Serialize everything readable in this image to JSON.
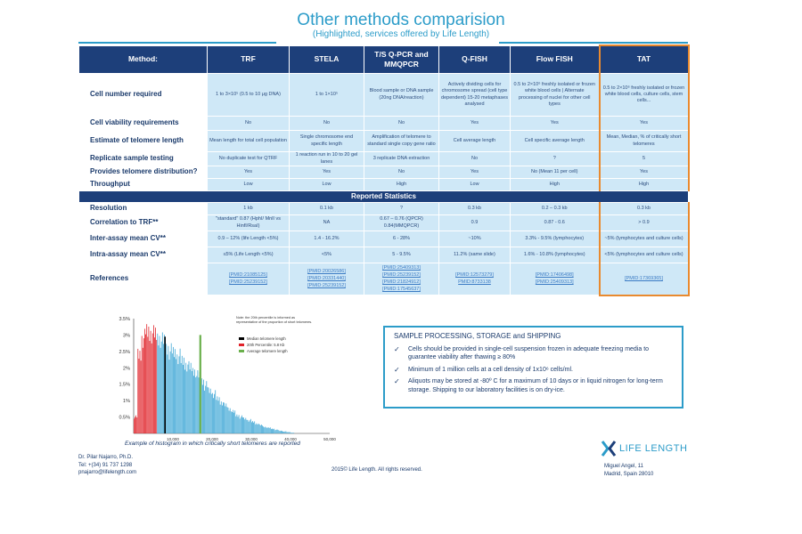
{
  "title": "Other methods comparision",
  "subtitle": "(Highlighted, services offered by Life Length)",
  "table": {
    "header": [
      "Method:",
      "TRF",
      "STELA",
      "T/S Q-PCR and MMQPCR",
      "Q-FISH",
      "Flow FISH",
      "TAT"
    ],
    "rows": [
      {
        "label": "Cell number required",
        "cells": [
          "1 to 3×10⁵ (0.5 to 10 μg DNA)",
          "1 to 1×10⁵",
          "Blood sample or DNA sample (20ng DNA/reaction)",
          "Actively dividing cells for chromosome spread (cell type dependent) 15-20 metaphases analysed",
          "0.5 to 2×10⁶ freshly isolated or frozen white blood cells | Alternate processing of nuclei for other cell types",
          "0.5 to 2×10⁶ freshly isolated or frozen white blood cells, culture cells, stem cells..."
        ]
      },
      {
        "label": "Cell viability requirements",
        "cells": [
          "No",
          "No",
          "No",
          "Yes",
          "Yes",
          "Yes"
        ]
      },
      {
        "label": "Estimate of telomere length",
        "cells": [
          "Mean length for total cell population",
          "Single chromosome end specific length",
          "Amplification of telomere to standard single copy gene ratio",
          "Cell average length",
          "Cell specific average length",
          "Mean, Median, % of critically short telomeres"
        ]
      },
      {
        "label": "Replicate sample testing",
        "cells": [
          "No duplicate test for QTRF",
          "1 reaction run in 10 to 20 gel lanes",
          "3 replicate DNA extraction",
          "No",
          "?",
          "5"
        ]
      },
      {
        "label": "Provides telomere distribution?",
        "cells": [
          "Yes",
          "Yes",
          "No",
          "Yes",
          "No (Mean 11 per cell)",
          "Yes"
        ]
      },
      {
        "label": "Throughput",
        "cells": [
          "Low",
          "Low",
          "High",
          "Low",
          "High",
          "High"
        ]
      }
    ],
    "section": "Reported Statistics",
    "stats_rows": [
      {
        "label": "Resolution",
        "cells": [
          "1 kb",
          "0.1 kb",
          "?",
          "0.3 kb",
          "0.2 – 0.3 kb",
          "0.3 kb"
        ]
      },
      {
        "label": "Correlation to TRF**",
        "cells": [
          "\"standard\" 0.87 (HphI/ MnlI vs HinfI/RsaI)",
          "NA",
          "0.67 – 0.76 (QPCR) 0.84(MMQPCR)",
          "0.9",
          "0.87 - 0.6",
          "> 0.9"
        ]
      },
      {
        "label": "Inter-assay mean CV**",
        "cells": [
          "0.9 – 12% (life Length <5%)",
          "1.4 - 16.2%",
          "6 - 28%",
          "~10%",
          "3.3% - 9.5% (lymphocytes)",
          "~5% (lymphocytes and culture cells)"
        ]
      },
      {
        "label": "Intra-assay mean CV**",
        "cells": [
          "≤5% (Life Length <5%)",
          "<5%",
          "5 - 9.5%",
          "11.2% (same slide)",
          "1.6% - 10.8% (lymphocytes)",
          "<5% (lymphocytes and culture cells)"
        ]
      }
    ],
    "references": {
      "label": "References",
      "cells": [
        [
          "[PMID:21085125]",
          "[PMID:25239152]"
        ],
        [
          "[PMID:20026586]",
          "[PMID:20331440]",
          "[PMID:25239152]"
        ],
        [
          "[PMID:25409313]",
          "[PMID:25239152]",
          "[PMID:21824912]",
          "[PMID:17545637]"
        ],
        [
          "[PMID:12573279]",
          "PMID:8733138"
        ],
        [
          "[PMID:17406498]",
          "[PMID:25409313]"
        ],
        [
          "[PMID:17369365]"
        ]
      ]
    }
  },
  "histogram": {
    "yticks": [
      "3.5%",
      "3%",
      "2.5%",
      "2%",
      "1.5%",
      "1%",
      "0.5%",
      ""
    ],
    "xticks": [
      "10,000",
      "20,000",
      "30,000",
      "40,000",
      "50,000"
    ],
    "note": "Note: the 20th percentile is informed as representative of the proportion of short telomeres.",
    "legend": [
      "Median telomere length",
      "20th Percentile: 5.8 Kb",
      "Average telomere length"
    ],
    "caption": "Example of histogram in which critically short telomeres are reported",
    "colors": {
      "bars": "#3fa7d6",
      "short": "#e0232a",
      "median": "#000000",
      "average": "#6ab04c"
    }
  },
  "chart_data": {
    "type": "bar",
    "x": [
      1000,
      2000,
      3000,
      4000,
      5000,
      6000,
      7000,
      8000,
      9000,
      10000,
      11000,
      12000,
      13000,
      14000,
      15000,
      16000,
      17000,
      18000,
      19000,
      20000,
      21000,
      22000,
      23000,
      24000,
      25000,
      26000,
      27000,
      28000,
      29000,
      30000,
      31000,
      32000,
      33000,
      34000,
      35000,
      36000,
      37000,
      38000,
      39000,
      40000,
      41000
    ],
    "values": [
      0.5,
      2.4,
      2.9,
      3.1,
      3.05,
      3.0,
      2.9,
      2.8,
      2.6,
      2.5,
      2.45,
      2.35,
      2.2,
      2.1,
      2.0,
      1.9,
      1.75,
      1.6,
      1.45,
      1.3,
      1.2,
      1.05,
      0.95,
      0.85,
      0.75,
      0.65,
      0.55,
      0.5,
      0.45,
      0.4,
      0.35,
      0.3,
      0.25,
      0.2,
      0.17,
      0.14,
      0.11,
      0.08,
      0.06,
      0.04,
      0.02
    ],
    "ylim": [
      0,
      3.5
    ],
    "xlim": [
      0,
      50000
    ],
    "median": 8000,
    "percentile_20": 5800,
    "average": 17000
  },
  "sample_box": {
    "title": "SAMPLE PROCESSING, STORAGE and SHIPPING",
    "items": [
      "Cells should be provided in single-cell suspension frozen in adequate freezing media to guarantee viability after thawing ≥ 80%",
      "Minimum of 1 million cells at a cell density of 1x10⁶ cells/ml.",
      "Aliquots may be stored at -80º C for a maximum of 10 days or in liquid nitrogen for long-term storage. Shipping to our laboratory facilities is on dry-ice."
    ]
  },
  "footer": {
    "contact": [
      "Dr. Pilar Najarro, Ph.D.",
      "Tel: +(34) 91 737 1298",
      "pnajarro@lifelength.com"
    ],
    "copyright": "2015© Life Length. All rights reserved.",
    "address": [
      "Miguel Angel, 11",
      "Madrid, Spain 28010"
    ],
    "logo_text": "LIFE LENGTH"
  }
}
